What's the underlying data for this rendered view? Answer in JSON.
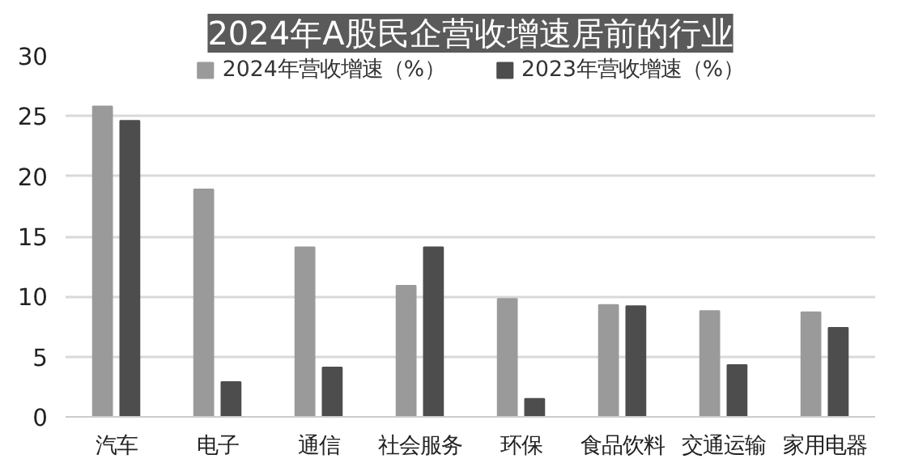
{
  "chart_data": {
    "type": "bar",
    "title": "2024年A股民企营收增速居前的行业",
    "categories": [
      "汽车",
      "电子",
      "通信",
      "社会服务",
      "环保",
      "食品饮料",
      "交通运输",
      "家用电器"
    ],
    "series": [
      {
        "name": "2024年营收增速（%）",
        "color": "#9a9a9a",
        "values": [
          25.8,
          18.9,
          14.1,
          10.9,
          9.8,
          9.3,
          8.8,
          8.7
        ]
      },
      {
        "name": "2023年营收增速（%）",
        "color": "#4d4d4d",
        "values": [
          24.6,
          2.9,
          4.1,
          14.1,
          1.5,
          9.2,
          4.3,
          7.4
        ]
      }
    ],
    "ylim": [
      0,
      30
    ],
    "yticks": [
      0,
      5,
      10,
      15,
      20,
      25,
      30
    ],
    "grid": "y",
    "legend": "top"
  }
}
